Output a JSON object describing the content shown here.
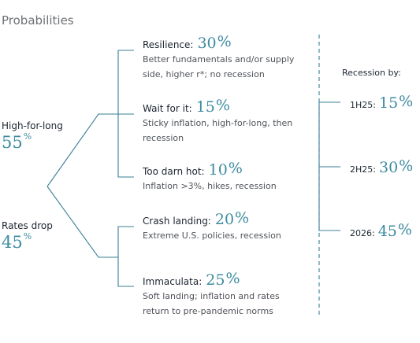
{
  "title": "Probabilities",
  "branches": [
    {
      "label": "High-for-long",
      "pct": "55",
      "sym": "%"
    },
    {
      "label": "Rates drop",
      "pct": "45",
      "sym": "%"
    }
  ],
  "scenarios": [
    {
      "name": "Resilience:",
      "pct": "30",
      "sym": "%",
      "desc": "Better fundamentals and/or supply side, higher r*; no recession"
    },
    {
      "name": "Wait for it:",
      "pct": "15",
      "sym": "%",
      "desc": "Sticky inflation, high-for-long, then recession"
    },
    {
      "name": "Too darn hot:",
      "pct": "10",
      "sym": "%",
      "desc": "Inflation >3%, hikes, recession"
    },
    {
      "name": "Crash landing:",
      "pct": "20",
      "sym": "%",
      "desc": "Extreme U.S. policies, recession"
    },
    {
      "name": "Immaculata:",
      "pct": "25",
      "sym": "%",
      "desc": "Soft landing; inflation and rates return to pre-pandemic norms"
    }
  ],
  "recession": {
    "header": "Recession by:",
    "items": [
      {
        "label": "1H25:",
        "pct": "15",
        "sym": "%"
      },
      {
        "label": "2H25:",
        "pct": "30",
        "sym": "%"
      },
      {
        "label": "2026:",
        "pct": "45",
        "sym": "%"
      }
    ]
  },
  "colors": {
    "accent": "#3d8ba0",
    "line": "#3a7f95",
    "text": "#1d2531",
    "muted": "#4f5359"
  }
}
